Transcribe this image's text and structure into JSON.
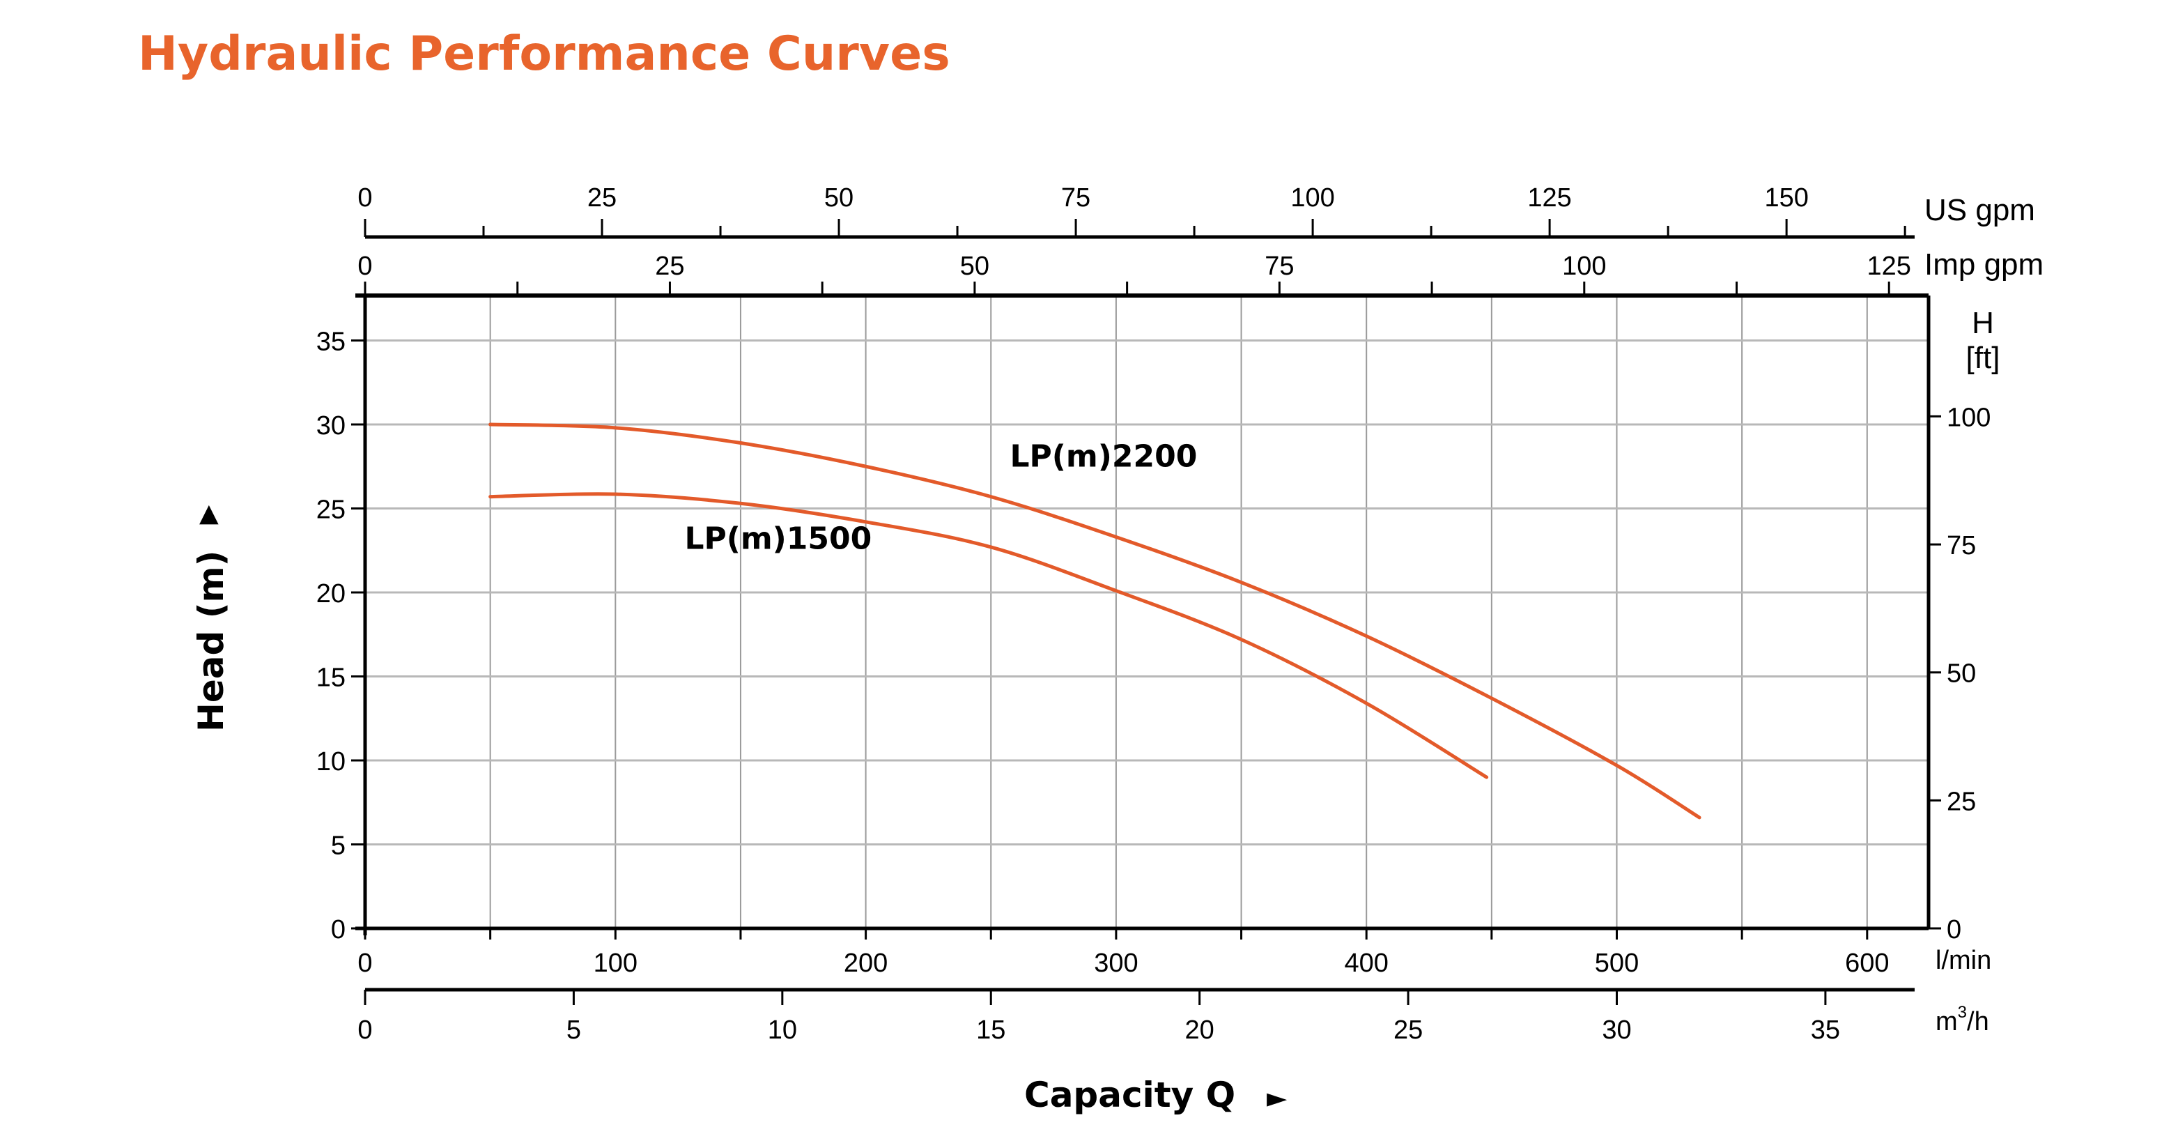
{
  "title": "Hydraulic Performance Curves",
  "colors": {
    "title": "#E8642C",
    "curve": "#E35A2A",
    "grid": "#b8b8b8",
    "axis": "#000000"
  },
  "chart_data": {
    "type": "line",
    "title": "Hydraulic Performance Curves",
    "xlabel": "Capacity Q",
    "ylabel": "Head (m)",
    "y2label": "H [ft]",
    "xlim": [
      0,
      623
    ],
    "ylim": [
      0,
      37.7
    ],
    "grid": true,
    "x_axes": {
      "lmin": {
        "unit": "l/min",
        "ticks": [
          0,
          100,
          200,
          300,
          400,
          500,
          600
        ],
        "minor_step": 50,
        "factor": 1
      },
      "m3h": {
        "unit": "m³/h",
        "ticks": [
          0,
          5,
          10,
          15,
          20,
          25,
          30,
          35
        ],
        "factor": 16.6667
      },
      "usgpm": {
        "unit": "US gpm",
        "ticks": [
          0,
          25,
          50,
          75,
          100,
          125,
          150
        ],
        "minor_step": 12.5,
        "factor": 3.7854
      },
      "impgpm": {
        "unit": "Imp gpm",
        "ticks": [
          0,
          25,
          50,
          75,
          100,
          125
        ],
        "minor_step": 12.5,
        "factor": 4.87
      }
    },
    "y_axes": {
      "m": {
        "unit": "m",
        "ticks": [
          0,
          5,
          10,
          15,
          20,
          25,
          30,
          35
        ]
      },
      "ft": {
        "unit": "ft",
        "ticks": [
          0,
          25,
          50,
          75,
          100
        ],
        "factor": 0.3048
      }
    },
    "series": [
      {
        "name": "LP(m)2200",
        "x": [
          50,
          100,
          150,
          200,
          250,
          300,
          350,
          400,
          450,
          500,
          533
        ],
        "y": [
          30.0,
          29.8,
          28.9,
          27.5,
          25.7,
          23.3,
          20.6,
          17.4,
          13.7,
          9.7,
          6.6
        ]
      },
      {
        "name": "LP(m)1500",
        "x": [
          50,
          100,
          150,
          200,
          250,
          300,
          350,
          400,
          448
        ],
        "y": [
          25.7,
          25.85,
          25.3,
          24.2,
          22.7,
          20.1,
          17.2,
          13.4,
          9.0
        ]
      }
    ],
    "annotations": [
      {
        "text": "LP(m)2200",
        "x": 295,
        "y": 27.5
      },
      {
        "text": "LP(m)1500",
        "x": 165,
        "y": 22.6
      }
    ]
  },
  "labels": {
    "head_axis": "Head (m)",
    "capacity_axis": "Capacity Q",
    "us_gpm": "US gpm",
    "imp_gpm": "Imp gpm",
    "ft_h": "H",
    "ft_unit": "[ft]",
    "lmin": "l/min",
    "m3h_m": "m",
    "m3h_sup": "3",
    "m3h_h": "/h",
    "up_arrow": "▲",
    "right_arrow": "►"
  }
}
